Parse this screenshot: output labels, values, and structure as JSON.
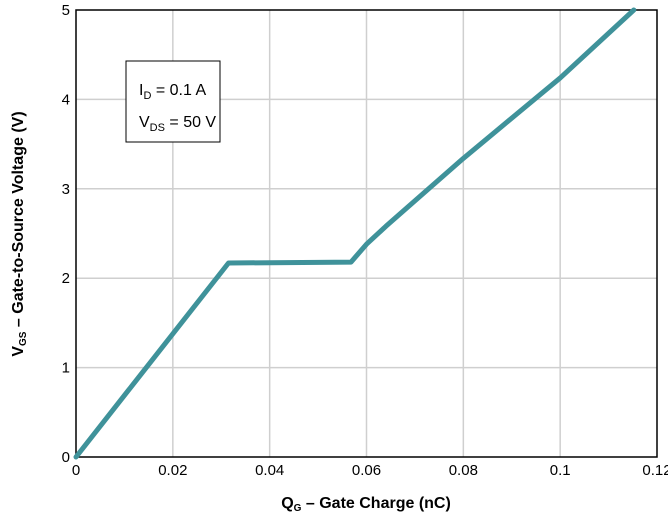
{
  "chart_data": {
    "type": "line",
    "title": "",
    "xlabel": {
      "main": "Q",
      "sub": "G",
      "rest": " – Gate Charge (nC)"
    },
    "ylabel": {
      "main": "V",
      "sub": "GS",
      "rest": " – Gate-to-Source Voltage (V)"
    },
    "xlim": [
      0,
      0.12
    ],
    "ylim": [
      0,
      5
    ],
    "xticks": [
      0,
      0.02,
      0.04,
      0.06,
      0.08,
      0.1,
      0.12
    ],
    "xtick_labels": [
      "0",
      "0.02",
      "0.04",
      "0.06",
      "0.08",
      "0.1",
      "0.12"
    ],
    "yticks": [
      0,
      1,
      2,
      3,
      4,
      5
    ],
    "ytick_labels": [
      "0",
      "1",
      "2",
      "3",
      "4",
      "5"
    ],
    "grid": true,
    "series": [
      {
        "color": "#3f929a",
        "x": [
          0,
          0.0315,
          0.0568,
          0.06,
          0.064,
          0.08,
          0.1,
          0.1152
        ],
        "y": [
          0,
          2.17,
          2.18,
          2.38,
          2.58,
          3.34,
          4.24,
          5.0
        ]
      }
    ],
    "annotation": {
      "line1": {
        "main": "I",
        "sub": "D",
        "rest": " = 0.1 A"
      },
      "line2": {
        "main": "V",
        "sub": "DS",
        "rest": " = 50 V"
      }
    }
  }
}
